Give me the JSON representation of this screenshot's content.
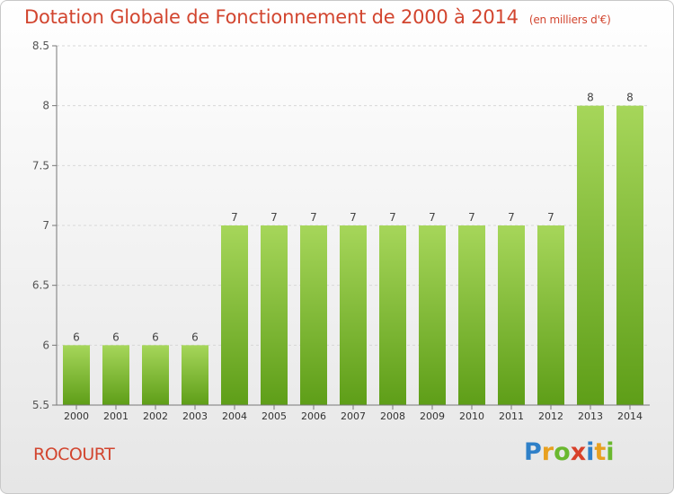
{
  "title": "Dotation Globale de Fonctionnement de 2000 à 2014",
  "title_unit": "(en milliers d'€)",
  "commune": "ROCOURT",
  "logo": {
    "letters": [
      "P",
      "r",
      "o",
      "x",
      "i",
      "t",
      "i"
    ],
    "colors": [
      "#2f80c8",
      "#e8a020",
      "#6ab82e",
      "#d8402a",
      "#2f80c8",
      "#e8a020",
      "#6ab82e"
    ]
  },
  "colors": {
    "title": "#d2452f",
    "bar_top": "#a6d65a",
    "bar_bottom": "#5e9e18",
    "axis": "#777777",
    "grid": "#d8d8d8"
  },
  "chart_data": {
    "type": "bar",
    "categories": [
      "2000",
      "2001",
      "2002",
      "2003",
      "2004",
      "2005",
      "2006",
      "2007",
      "2008",
      "2009",
      "2010",
      "2011",
      "2012",
      "2013",
      "2014"
    ],
    "values": [
      6,
      6,
      6,
      6,
      7,
      7,
      7,
      7,
      7,
      7,
      7,
      7,
      7,
      8,
      8
    ],
    "data_labels": [
      "6",
      "6",
      "6",
      "6",
      "7",
      "7",
      "7",
      "7",
      "7",
      "7",
      "7",
      "7",
      "7",
      "8",
      "8"
    ],
    "ylim": [
      5.5,
      8.5
    ],
    "yticks": [
      5.5,
      6,
      6.5,
      7,
      7.5,
      8,
      8.5
    ],
    "ytick_labels": [
      "5.5",
      "6",
      "6.5",
      "7",
      "7.5",
      "8",
      "8.5"
    ],
    "grid": true
  }
}
